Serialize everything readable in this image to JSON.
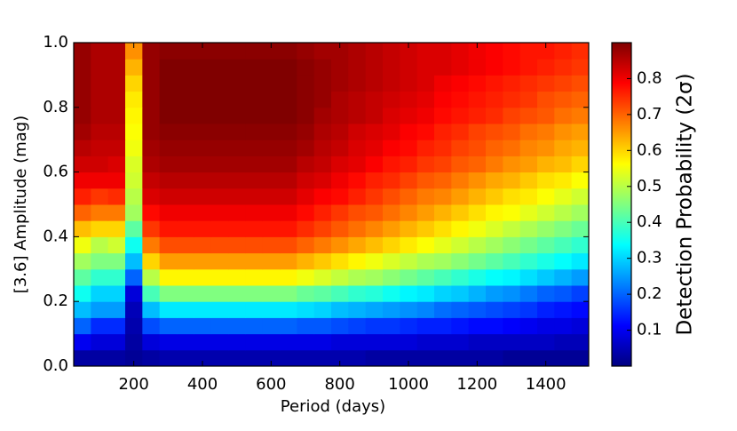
{
  "chart_data": {
    "type": "heatmap",
    "xlabel": "Period (days)",
    "ylabel": "[3.6] Amplitude (mag)",
    "colorbar_label": "Detection Probability (2σ)",
    "colormap": "jet",
    "x": [
      50,
      100,
      150,
      200,
      250,
      300,
      350,
      400,
      450,
      500,
      550,
      600,
      650,
      700,
      750,
      800,
      850,
      900,
      950,
      1000,
      1050,
      1100,
      1150,
      1200,
      1250,
      1300,
      1350,
      1400,
      1450,
      1500
    ],
    "y": [
      0.025,
      0.075,
      0.125,
      0.175,
      0.225,
      0.275,
      0.325,
      0.375,
      0.425,
      0.475,
      0.525,
      0.575,
      0.625,
      0.675,
      0.725,
      0.775,
      0.825,
      0.875,
      0.925,
      0.975
    ],
    "values": [
      [
        0.03,
        0.03,
        0.03,
        0.02,
        0.03,
        0.04,
        0.04,
        0.04,
        0.04,
        0.04,
        0.04,
        0.04,
        0.04,
        0.04,
        0.04,
        0.04,
        0.04,
        0.03,
        0.03,
        0.03,
        0.03,
        0.03,
        0.03,
        0.03,
        0.03,
        0.02,
        0.02,
        0.02,
        0.02,
        0.02
      ],
      [
        0.1,
        0.08,
        0.08,
        0.03,
        0.08,
        0.09,
        0.09,
        0.09,
        0.09,
        0.09,
        0.09,
        0.09,
        0.09,
        0.09,
        0.09,
        0.08,
        0.08,
        0.08,
        0.08,
        0.08,
        0.07,
        0.07,
        0.07,
        0.06,
        0.06,
        0.06,
        0.06,
        0.06,
        0.05,
        0.05
      ],
      [
        0.2,
        0.15,
        0.15,
        0.04,
        0.18,
        0.2,
        0.2,
        0.2,
        0.2,
        0.2,
        0.2,
        0.2,
        0.2,
        0.19,
        0.19,
        0.18,
        0.17,
        0.16,
        0.16,
        0.15,
        0.14,
        0.14,
        0.13,
        0.12,
        0.12,
        0.11,
        0.1,
        0.09,
        0.09,
        0.08
      ],
      [
        0.28,
        0.25,
        0.25,
        0.05,
        0.28,
        0.32,
        0.32,
        0.32,
        0.32,
        0.32,
        0.32,
        0.32,
        0.32,
        0.31,
        0.3,
        0.28,
        0.27,
        0.26,
        0.25,
        0.24,
        0.23,
        0.21,
        0.2,
        0.19,
        0.18,
        0.17,
        0.16,
        0.14,
        0.13,
        0.12
      ],
      [
        0.35,
        0.3,
        0.3,
        0.08,
        0.4,
        0.45,
        0.45,
        0.45,
        0.45,
        0.45,
        0.45,
        0.45,
        0.45,
        0.43,
        0.42,
        0.4,
        0.38,
        0.37,
        0.35,
        0.33,
        0.32,
        0.3,
        0.29,
        0.27,
        0.25,
        0.24,
        0.22,
        0.2,
        0.19,
        0.17
      ],
      [
        0.42,
        0.38,
        0.38,
        0.2,
        0.5,
        0.57,
        0.57,
        0.57,
        0.57,
        0.57,
        0.57,
        0.57,
        0.57,
        0.55,
        0.53,
        0.51,
        0.49,
        0.48,
        0.46,
        0.44,
        0.42,
        0.4,
        0.38,
        0.36,
        0.34,
        0.33,
        0.31,
        0.29,
        0.27,
        0.25
      ],
      [
        0.48,
        0.45,
        0.45,
        0.28,
        0.6,
        0.65,
        0.65,
        0.65,
        0.65,
        0.65,
        0.65,
        0.65,
        0.65,
        0.63,
        0.61,
        0.59,
        0.57,
        0.55,
        0.53,
        0.51,
        0.49,
        0.48,
        0.46,
        0.44,
        0.42,
        0.4,
        0.38,
        0.36,
        0.34,
        0.32
      ],
      [
        0.55,
        0.5,
        0.52,
        0.35,
        0.68,
        0.72,
        0.72,
        0.72,
        0.72,
        0.72,
        0.72,
        0.72,
        0.72,
        0.7,
        0.68,
        0.66,
        0.64,
        0.62,
        0.6,
        0.58,
        0.56,
        0.54,
        0.52,
        0.5,
        0.48,
        0.46,
        0.44,
        0.42,
        0.4,
        0.38
      ],
      [
        0.62,
        0.6,
        0.6,
        0.42,
        0.74,
        0.77,
        0.77,
        0.77,
        0.77,
        0.77,
        0.77,
        0.77,
        0.77,
        0.75,
        0.73,
        0.71,
        0.69,
        0.67,
        0.65,
        0.63,
        0.61,
        0.59,
        0.57,
        0.55,
        0.53,
        0.51,
        0.49,
        0.47,
        0.45,
        0.43
      ],
      [
        0.7,
        0.68,
        0.68,
        0.48,
        0.78,
        0.8,
        0.8,
        0.8,
        0.8,
        0.8,
        0.8,
        0.8,
        0.8,
        0.78,
        0.76,
        0.74,
        0.72,
        0.71,
        0.69,
        0.67,
        0.65,
        0.63,
        0.61,
        0.59,
        0.57,
        0.56,
        0.54,
        0.52,
        0.5,
        0.48
      ],
      [
        0.76,
        0.74,
        0.75,
        0.5,
        0.82,
        0.83,
        0.83,
        0.83,
        0.83,
        0.83,
        0.83,
        0.83,
        0.83,
        0.81,
        0.79,
        0.78,
        0.76,
        0.74,
        0.72,
        0.7,
        0.68,
        0.67,
        0.65,
        0.63,
        0.61,
        0.59,
        0.58,
        0.56,
        0.54,
        0.52
      ],
      [
        0.8,
        0.8,
        0.8,
        0.52,
        0.84,
        0.85,
        0.85,
        0.85,
        0.85,
        0.85,
        0.85,
        0.85,
        0.85,
        0.83,
        0.82,
        0.8,
        0.78,
        0.76,
        0.75,
        0.73,
        0.71,
        0.7,
        0.68,
        0.66,
        0.64,
        0.63,
        0.61,
        0.59,
        0.58,
        0.56
      ],
      [
        0.83,
        0.83,
        0.82,
        0.53,
        0.86,
        0.87,
        0.87,
        0.87,
        0.87,
        0.87,
        0.87,
        0.87,
        0.87,
        0.85,
        0.84,
        0.82,
        0.81,
        0.79,
        0.77,
        0.76,
        0.74,
        0.73,
        0.71,
        0.7,
        0.68,
        0.66,
        0.65,
        0.63,
        0.62,
        0.6
      ],
      [
        0.85,
        0.84,
        0.84,
        0.55,
        0.87,
        0.88,
        0.88,
        0.88,
        0.88,
        0.88,
        0.88,
        0.88,
        0.88,
        0.87,
        0.85,
        0.84,
        0.82,
        0.81,
        0.79,
        0.78,
        0.76,
        0.75,
        0.73,
        0.72,
        0.7,
        0.69,
        0.67,
        0.66,
        0.64,
        0.63
      ],
      [
        0.87,
        0.85,
        0.85,
        0.56,
        0.88,
        0.89,
        0.89,
        0.89,
        0.89,
        0.89,
        0.89,
        0.89,
        0.89,
        0.88,
        0.86,
        0.85,
        0.83,
        0.82,
        0.81,
        0.79,
        0.78,
        0.76,
        0.75,
        0.73,
        0.72,
        0.71,
        0.69,
        0.68,
        0.66,
        0.65
      ],
      [
        0.88,
        0.86,
        0.86,
        0.57,
        0.88,
        0.9,
        0.9,
        0.9,
        0.9,
        0.9,
        0.9,
        0.9,
        0.9,
        0.89,
        0.87,
        0.86,
        0.85,
        0.84,
        0.82,
        0.81,
        0.8,
        0.78,
        0.77,
        0.76,
        0.75,
        0.73,
        0.72,
        0.71,
        0.69,
        0.68
      ],
      [
        0.88,
        0.86,
        0.86,
        0.58,
        0.88,
        0.9,
        0.9,
        0.9,
        0.9,
        0.9,
        0.9,
        0.9,
        0.9,
        0.89,
        0.88,
        0.86,
        0.85,
        0.84,
        0.83,
        0.82,
        0.81,
        0.79,
        0.78,
        0.77,
        0.76,
        0.75,
        0.74,
        0.72,
        0.71,
        0.7
      ],
      [
        0.88,
        0.86,
        0.86,
        0.6,
        0.88,
        0.9,
        0.9,
        0.9,
        0.9,
        0.9,
        0.9,
        0.9,
        0.9,
        0.89,
        0.88,
        0.87,
        0.86,
        0.85,
        0.84,
        0.83,
        0.82,
        0.8,
        0.79,
        0.78,
        0.77,
        0.76,
        0.75,
        0.74,
        0.73,
        0.72
      ],
      [
        0.88,
        0.86,
        0.86,
        0.63,
        0.88,
        0.9,
        0.9,
        0.9,
        0.9,
        0.9,
        0.9,
        0.9,
        0.9,
        0.89,
        0.88,
        0.87,
        0.86,
        0.85,
        0.84,
        0.83,
        0.82,
        0.82,
        0.81,
        0.8,
        0.79,
        0.78,
        0.77,
        0.76,
        0.75,
        0.74
      ],
      [
        0.88,
        0.86,
        0.86,
        0.66,
        0.88,
        0.89,
        0.89,
        0.89,
        0.89,
        0.89,
        0.89,
        0.89,
        0.89,
        0.88,
        0.87,
        0.87,
        0.86,
        0.85,
        0.84,
        0.83,
        0.82,
        0.82,
        0.81,
        0.8,
        0.79,
        0.78,
        0.77,
        0.77,
        0.76,
        0.75
      ]
    ],
    "xlim": [
      25,
      1525
    ],
    "ylim": [
      0,
      1
    ],
    "clim": [
      0,
      0.9
    ],
    "xticks": [
      200,
      400,
      600,
      800,
      1000,
      1200,
      1400
    ],
    "yticks": [
      {
        "value": 0,
        "label": "0.0"
      },
      0.2,
      0.4,
      0.6,
      0.8,
      {
        "value": 1,
        "label": "1.0"
      }
    ],
    "cticks": [
      0.1,
      0.2,
      0.3,
      0.4,
      0.5,
      0.6,
      0.7,
      0.8
    ]
  }
}
